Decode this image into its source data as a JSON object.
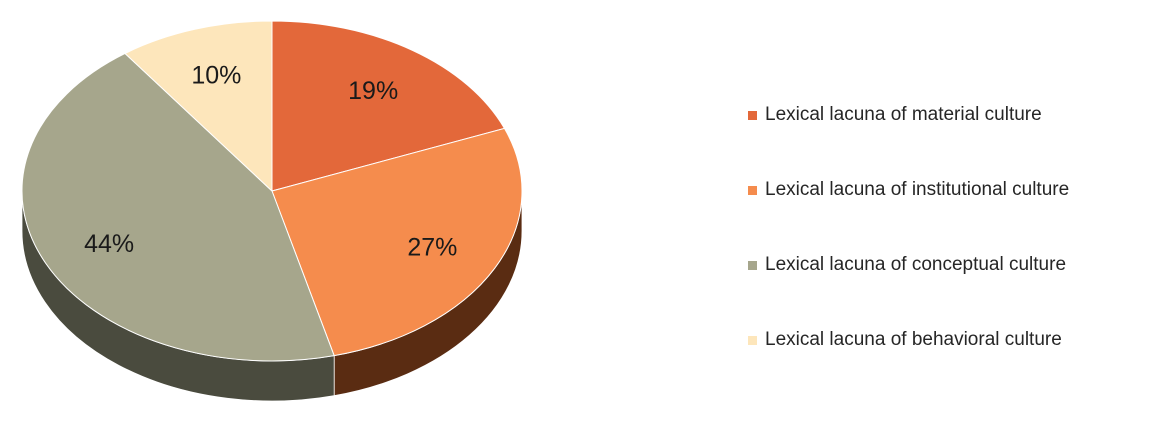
{
  "chart_data": {
    "type": "pie",
    "title": "",
    "slices": [
      {
        "label": "Lexical lacuna of material culture",
        "value": 19,
        "display": "19%",
        "color": "#e3683a",
        "side_color": "#7a3418"
      },
      {
        "label": "Lexical lacuna of institutional culture",
        "value": 27,
        "display": "27%",
        "color": "#f58c4d",
        "side_color": "#5a2c12"
      },
      {
        "label": "Lexical lacuna of conceptual culture",
        "value": 44,
        "display": "44%",
        "color": "#a6a68c",
        "side_color": "#4a4b3e"
      },
      {
        "label": "Lexical lacuna of behavioral culture",
        "value": 10,
        "display": "10%",
        "color": "#fde6bb",
        "side_color": "#7a6c52"
      }
    ],
    "start_position": "12 o'clock",
    "direction": "clockwise",
    "style": "3d-tilted",
    "legend_position": "right"
  }
}
